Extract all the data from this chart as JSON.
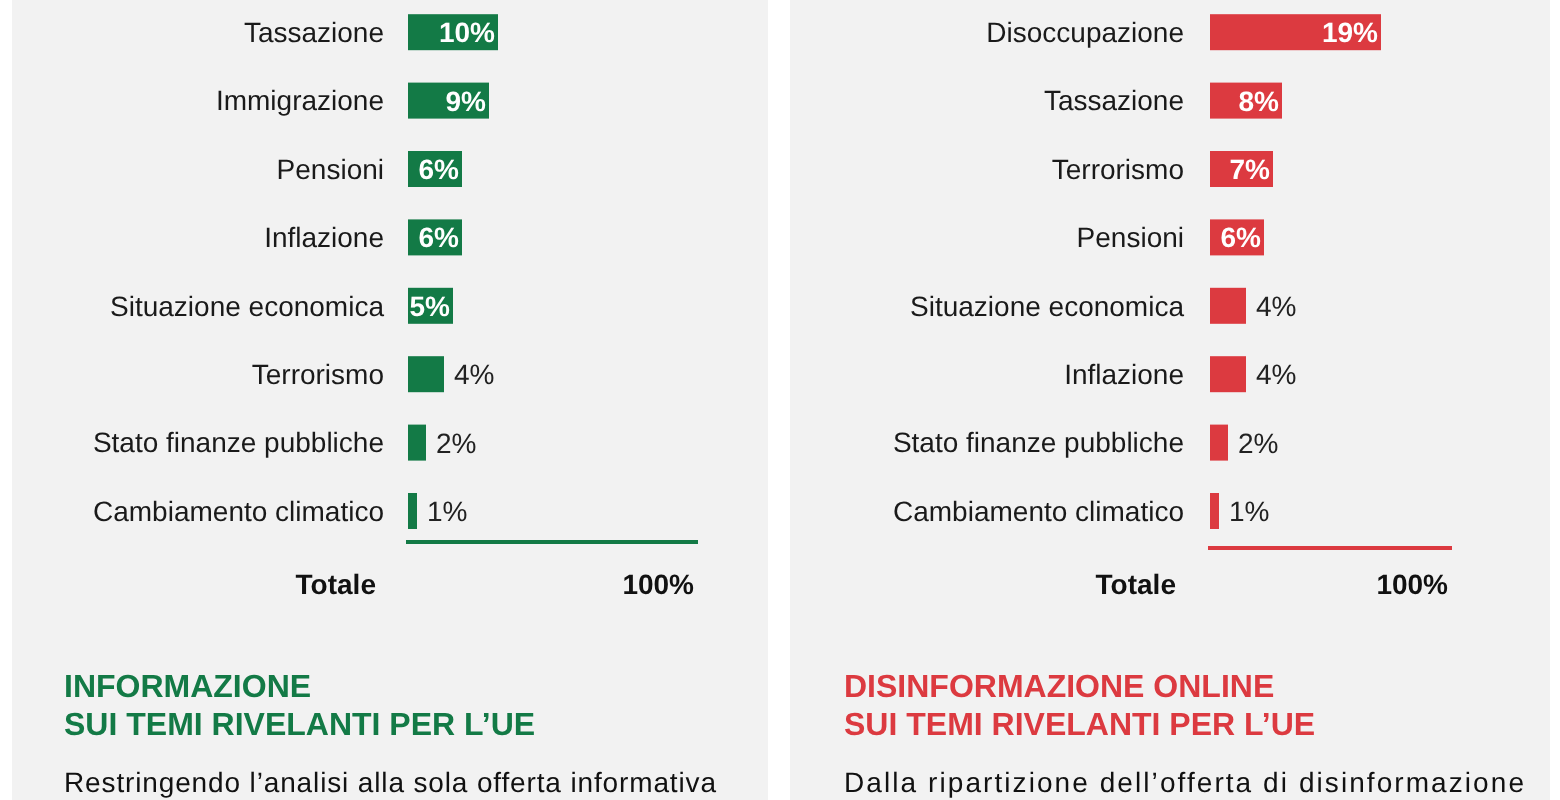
{
  "chart_data": [
    {
      "type": "bar",
      "orientation": "horizontal",
      "categories": [
        "Tassazione",
        "Immigrazione",
        "Pensioni",
        "Inflazione",
        "Situazione economica",
        "Terrorismo",
        "Stato finanze pubbliche",
        "Cambiamento climatico"
      ],
      "values": [
        10,
        9,
        6,
        6,
        5,
        4,
        2,
        1
      ],
      "value_labels": [
        "10%",
        "9%",
        "6%",
        "6%",
        "5%",
        "4%",
        "2%",
        "1%"
      ],
      "color": "#137a46",
      "annotations": [
        "Totale",
        "100%",
        "INFORMAZIONE\nSUI TEMI RIVELANTI PER L’UE",
        "Restringendo l’analisi alla sola offerta informativa"
      ]
    },
    {
      "type": "bar",
      "orientation": "horizontal",
      "categories": [
        "Disoccupazione",
        "Tassazione",
        "Terrorismo",
        "Pensioni",
        "Situazione economica",
        "Inflazione",
        "Stato finanze pubbliche",
        "Cambiamento climatico"
      ],
      "values": [
        19,
        8,
        7,
        6,
        4,
        4,
        2,
        1
      ],
      "value_labels": [
        "19%",
        "8%",
        "7%",
        "6%",
        "4%",
        "4%",
        "2%",
        "1%"
      ],
      "color": "#dc3a40",
      "annotations": [
        "Totale",
        "100%",
        "DISINFORMAZIONE ONLINE\nSUI TEMI RIVELANTI PER L’UE",
        "Dalla ripartizione dell’offerta di disinformazione"
      ]
    }
  ]
}
